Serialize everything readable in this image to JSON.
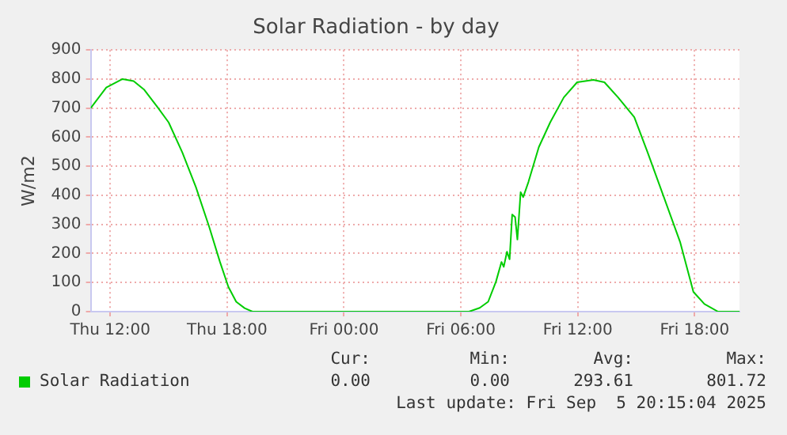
{
  "chart_data": {
    "type": "line",
    "title": "Solar Radiation - by day",
    "ylabel": "W/m2",
    "xlim": [
      "2025-09-04T11:00",
      "2025-09-05T20:18"
    ],
    "ylim": [
      0,
      900
    ],
    "xticks": [
      {
        "value": "2025-09-04T12:00",
        "label": "Thu 12:00"
      },
      {
        "value": "2025-09-04T18:00",
        "label": "Thu 18:00"
      },
      {
        "value": "2025-09-05T00:00",
        "label": "Fri 00:00"
      },
      {
        "value": "2025-09-05T06:00",
        "label": "Fri 06:00"
      },
      {
        "value": "2025-09-05T12:00",
        "label": "Fri 12:00"
      },
      {
        "value": "2025-09-05T18:00",
        "label": "Fri 18:00"
      }
    ],
    "yticks": [
      0,
      100,
      200,
      300,
      400,
      500,
      600,
      700,
      800,
      900
    ],
    "grid": true,
    "legend": "bottom",
    "marker": "none",
    "line_style": "solid",
    "series": [
      {
        "name": "Solar Radiation",
        "color": "#00cc00",
        "x": [
          "2025-09-04T11:00",
          "2025-09-04T11:48",
          "2025-09-04T12:38",
          "2025-09-04T13:12",
          "2025-09-04T13:45",
          "2025-09-04T14:26",
          "2025-09-04T15:00",
          "2025-09-04T15:42",
          "2025-09-04T16:24",
          "2025-09-04T17:05",
          "2025-09-04T17:38",
          "2025-09-04T18:04",
          "2025-09-04T18:28",
          "2025-09-04T18:54",
          "2025-09-04T19:18",
          "2025-09-05T06:25",
          "2025-09-05T06:58",
          "2025-09-05T07:24",
          "2025-09-05T07:48",
          "2025-09-05T08:05",
          "2025-09-05T08:12",
          "2025-09-05T08:22",
          "2025-09-05T08:30",
          "2025-09-05T08:38",
          "2025-09-05T08:47",
          "2025-09-05T08:54",
          "2025-09-05T09:04",
          "2025-09-05T09:12",
          "2025-09-05T09:28",
          "2025-09-05T10:00",
          "2025-09-05T10:35",
          "2025-09-05T11:17",
          "2025-09-05T11:58",
          "2025-09-05T12:48",
          "2025-09-05T13:22",
          "2025-09-05T14:04",
          "2025-09-05T14:54",
          "2025-09-05T15:35",
          "2025-09-05T16:25",
          "2025-09-05T17:15",
          "2025-09-05T17:56",
          "2025-09-05T18:30",
          "2025-09-05T19:12",
          "2025-09-05T20:18"
        ],
        "values": [
          700,
          771,
          800,
          793,
          763,
          703,
          651,
          548,
          428,
          291,
          171,
          85,
          34,
          12,
          0,
          0,
          13,
          34,
          103,
          171,
          154,
          206,
          180,
          334,
          325,
          248,
          411,
          394,
          446,
          566,
          651,
          737,
          789,
          797,
          789,
          737,
          669,
          548,
          394,
          240,
          68,
          26,
          0,
          0
        ]
      }
    ],
    "annotations": [
      "Cur:",
      "Min:",
      "Avg:",
      "Max:",
      "0.00",
      "0.00",
      "293.61",
      "801.72",
      "Last update: Fri Sep  5 20:15:04 2025"
    ]
  }
}
